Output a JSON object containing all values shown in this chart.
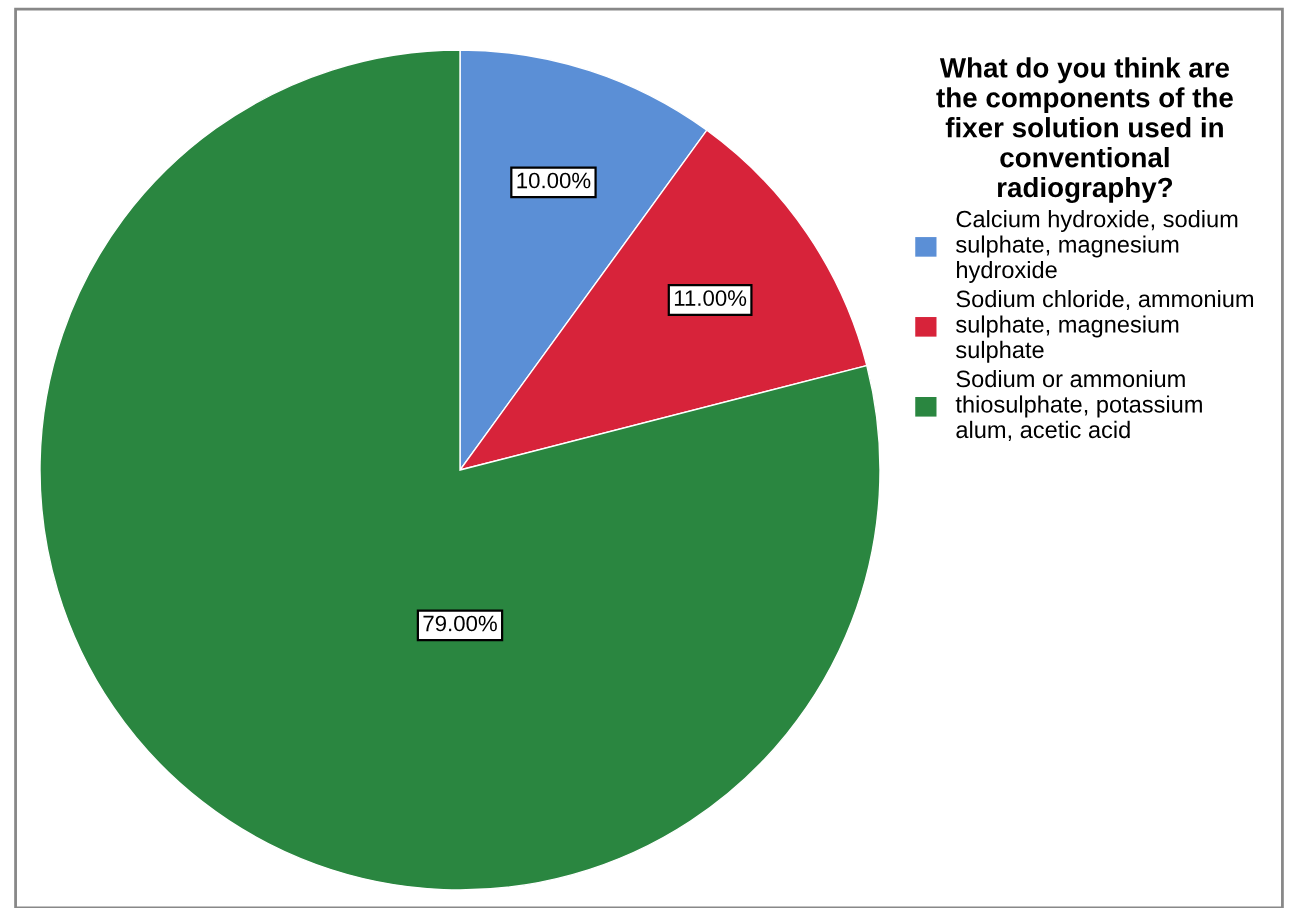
{
  "chart_data": {
    "type": "pie",
    "legend_title": "What do you think are the components of the fixer solution used in conventional radiography?",
    "categories": [
      "Calcium hydroxide, sodium sulphate, magnesium hydroxide",
      "Sodium chloride, ammonium sulphate, magnesium sulphate",
      "Sodium or ammonium thiosulphate, potassium alum, acetic acid"
    ],
    "values": [
      10,
      11,
      79
    ],
    "colors": [
      "#5b8fd6",
      "#d7233a",
      "#2a8640"
    ],
    "value_labels": [
      "10.00%",
      "11.00%",
      "79.00%"
    ],
    "legend": "top right"
  }
}
